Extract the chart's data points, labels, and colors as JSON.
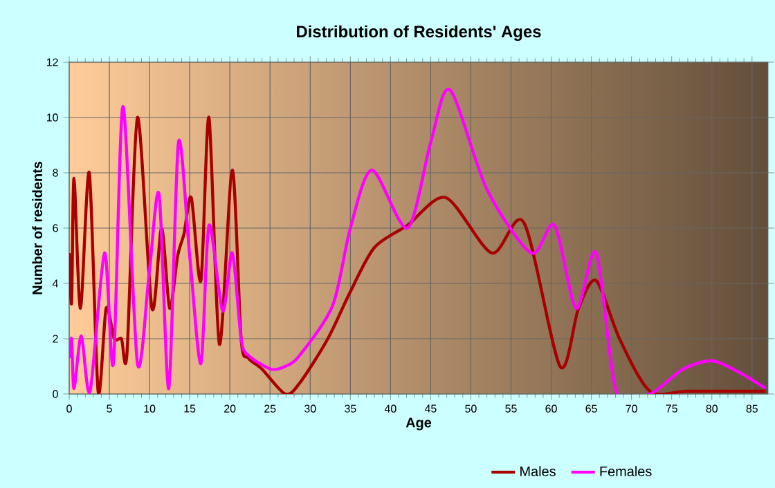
{
  "chart_data": {
    "type": "line",
    "title": "Distribution of Residents' Ages",
    "xlabel": "Age",
    "ylabel": "Number of residents",
    "xlim": [
      0,
      87
    ],
    "ylim": [
      0,
      12
    ],
    "xticks": [
      0,
      5,
      10,
      15,
      20,
      25,
      30,
      35,
      40,
      45,
      50,
      55,
      60,
      65,
      70,
      75,
      80,
      85
    ],
    "yticks": [
      0,
      2,
      4,
      6,
      8,
      10,
      12
    ],
    "grid": true,
    "legend": "bottom",
    "marker": "none",
    "line_style": "solid",
    "series": [
      {
        "name": "Males",
        "color": "#a80000",
        "x": [
          0,
          0.3,
          0.6,
          1.4,
          2.5,
          3.6,
          4.6,
          5.6,
          6.5,
          7.2,
          8.5,
          10.3,
          11.5,
          12.5,
          13.5,
          14.3,
          15.2,
          16.4,
          17.4,
          18.7,
          20.3,
          21.4,
          22.3,
          24,
          26.9,
          28.7,
          32.2,
          35,
          38,
          42.1,
          46.9,
          52.6,
          56.6,
          61.1,
          63.4,
          65.6,
          68.5,
          72.3,
          77,
          86.7
        ],
        "values": [
          5.1,
          3.3,
          7.8,
          3.1,
          8.0,
          0.1,
          3.1,
          2.0,
          2.0,
          1.5,
          10.0,
          3.1,
          6.0,
          3.1,
          5.0,
          5.8,
          7.1,
          4.1,
          10.0,
          1.8,
          8.1,
          2.0,
          1.3,
          0.9,
          0.0,
          0.4,
          2.0,
          3.7,
          5.3,
          6.1,
          7.1,
          5.1,
          6.2,
          1.0,
          3.1,
          4.1,
          2.0,
          0.1,
          0.1,
          0.1
        ]
      },
      {
        "name": "Females",
        "color": "#ff00ff",
        "x": [
          0,
          0.3,
          0.6,
          1.5,
          2.6,
          4.4,
          5.5,
          6.7,
          8.5,
          10,
          11.2,
          12.4,
          13.6,
          15,
          16.4,
          17.4,
          19.1,
          20.3,
          21.4,
          22.3,
          25.1,
          26.9,
          28.7,
          32.8,
          35,
          37.7,
          42.1,
          45,
          47.4,
          52,
          57.5,
          60.4,
          63.1,
          65.6,
          68.2,
          72.3,
          76.4,
          80,
          83.3,
          86.7
        ],
        "values": [
          1.3,
          2.0,
          0.2,
          2.1,
          0.1,
          5.1,
          1.1,
          10.4,
          1.1,
          4.5,
          7.2,
          0.2,
          9.1,
          5.0,
          1.1,
          6.1,
          3.0,
          5.1,
          2.0,
          1.4,
          0.9,
          1.0,
          1.4,
          3.2,
          6.0,
          8.1,
          6.0,
          9.1,
          11.0,
          7.4,
          5.1,
          6.1,
          3.1,
          5.1,
          0.0,
          0.0,
          0.9,
          1.2,
          0.8,
          0.2
        ]
      }
    ]
  }
}
